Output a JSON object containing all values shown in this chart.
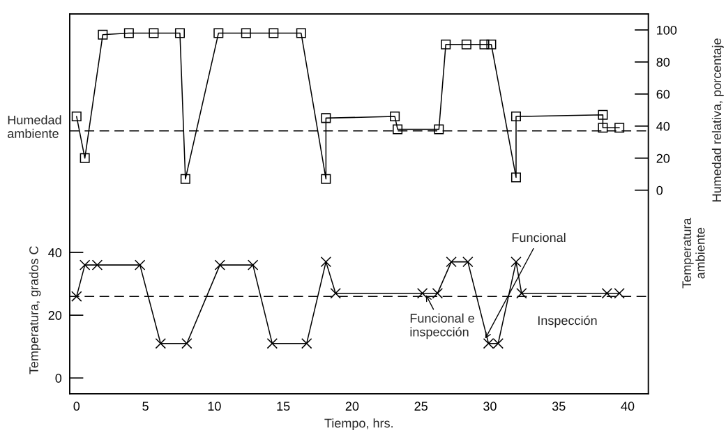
{
  "chart_data": {
    "type": "line",
    "xlabel": "Tiempo, hrs.",
    "ylabel": "Temperatura, grados C",
    "y2label": "Humedad relativa, porcentaje",
    "xlim": [
      -0.5,
      41.5
    ],
    "xticks": [
      0,
      5,
      10,
      15,
      20,
      25,
      30,
      35,
      40
    ],
    "ylim": [
      -5,
      116
    ],
    "yticks": [
      0,
      20,
      40
    ],
    "y2lim": [
      -127,
      110
    ],
    "y2ticks": [
      0,
      20,
      40,
      60,
      80,
      100
    ],
    "grid": false,
    "legend": false,
    "series": [
      {
        "axis": "y2",
        "color": "#000000",
        "marker": "square",
        "line_style": "solid",
        "x": [
          0,
          0.6,
          1.9,
          3.8,
          5.6,
          7.5,
          7.9,
          10.3,
          12.3,
          14.3,
          16.3,
          18.1,
          18.1,
          23.1,
          23.3,
          26.3,
          26.8,
          28.3,
          29.6,
          30.1,
          31.9,
          31.9,
          38.2,
          38.2,
          39.4
        ],
        "values": [
          46,
          20,
          97,
          98,
          98,
          98,
          7,
          98,
          98,
          98,
          98,
          7,
          45,
          46,
          38,
          38,
          91,
          91,
          91,
          91,
          8,
          46,
          47,
          39,
          39
        ]
      },
      {
        "axis": "y",
        "color": "#000000",
        "marker": "cross",
        "line_style": "solid",
        "x": [
          0,
          0.6,
          1.5,
          4.6,
          6.1,
          8.0,
          10.4,
          12.8,
          14.2,
          16.7,
          18.1,
          18.8,
          25.1,
          26.2,
          27.2,
          28.4,
          29.9,
          30.6,
          31.9,
          32.3,
          38.5,
          39.4
        ],
        "values": [
          26,
          36,
          36,
          36,
          11,
          11,
          36,
          36,
          11,
          11,
          37,
          27,
          27,
          27,
          37,
          37,
          11,
          11,
          37,
          27,
          27,
          27
        ]
      }
    ],
    "ref_lines": [
      {
        "axis": "y2",
        "value": 37,
        "color": "#000000",
        "line_style": "dashed"
      },
      {
        "axis": "y",
        "value": 26,
        "color": "#000000",
        "line_style": "dashed"
      }
    ],
    "annotations": [
      "Humedad ambiente",
      "Temperatura ambiente",
      {
        "text": "Funcional",
        "x": 29.6,
        "y": 12
      },
      {
        "text": "Funcional e inspección",
        "x": 25.3,
        "y": 27
      },
      "Inspección"
    ]
  }
}
